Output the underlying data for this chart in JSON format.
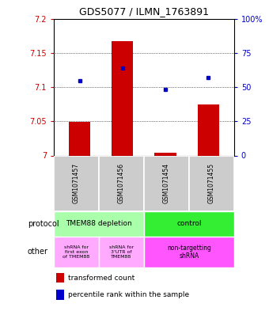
{
  "title": "GDS5077 / ILMN_1763891",
  "samples": [
    "GSM1071457",
    "GSM1071456",
    "GSM1071454",
    "GSM1071455"
  ],
  "bar_values": [
    7.049,
    7.167,
    7.004,
    7.075
  ],
  "bar_base": 7.0,
  "percentile_values": [
    7.109,
    7.128,
    7.096,
    7.114
  ],
  "ylim": [
    7.0,
    7.2
  ],
  "yticks_left": [
    7.0,
    7.05,
    7.1,
    7.15,
    7.2
  ],
  "yticks_right": [
    0,
    25,
    50,
    75,
    100
  ],
  "ytick_labels_left": [
    "7",
    "7.05",
    "7.1",
    "7.15",
    "7.2"
  ],
  "ytick_labels_right": [
    "0",
    "25",
    "50",
    "75",
    "100%"
  ],
  "bar_color": "#cc0000",
  "dot_color": "#0000cc",
  "protocol_labels": [
    "TMEM88 depletion",
    "control"
  ],
  "protocol_colors": [
    "#aaffaa",
    "#33ee33"
  ],
  "other_labels": [
    "shRNA for\nfirst exon\nof TMEM88",
    "shRNA for\n3'UTR of\nTMEM88",
    "non-targetting\nshRNA"
  ],
  "other_colors_light": "#ffaaff",
  "other_color_bright": "#ff55ff",
  "legend_red_label": "transformed count",
  "legend_blue_label": "percentile rank within the sample",
  "bar_width": 0.5
}
